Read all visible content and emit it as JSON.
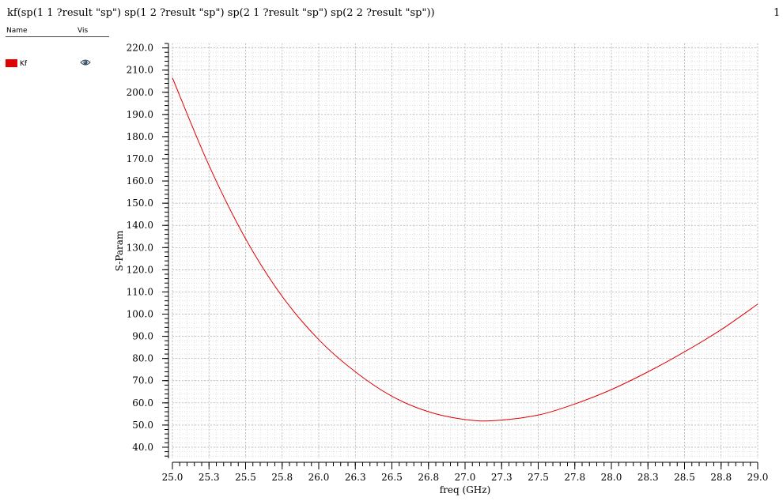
{
  "header": {
    "title": "kf(sp(1 1 ?result \"sp\") sp(1 2 ?result \"sp\") sp(2 1 ?result \"sp\") sp(2 2 ?result \"sp\"))",
    "page_number": "1"
  },
  "legend": {
    "col_name": "Name",
    "col_vis": "Vis",
    "items": [
      {
        "label": "Kf",
        "color": "#e00000",
        "visible_icon": "eye-icon"
      }
    ]
  },
  "colors": {
    "trace": "#e00000",
    "grid": "#cfcfcf",
    "axis": "#000000"
  },
  "chart_data": {
    "type": "line",
    "title": "",
    "xlabel": "freq (GHz)",
    "ylabel": "S-Param",
    "xlim": [
      25.0,
      29.0
    ],
    "ylim": [
      35.0,
      222.0
    ],
    "x_ticks": [
      "25.0",
      "25.3",
      "25.5",
      "25.8",
      "26.0",
      "26.3",
      "26.5",
      "26.8",
      "27.0",
      "27.3",
      "27.5",
      "27.8",
      "28.0",
      "28.3",
      "28.5",
      "28.8",
      "29.0"
    ],
    "y_ticks": [
      "40.0",
      "50.0",
      "60.0",
      "70.0",
      "80.0",
      "90.0",
      "100.0",
      "110.0",
      "120.0",
      "130.0",
      "140.0",
      "150.0",
      "160.0",
      "170.0",
      "180.0",
      "190.0",
      "200.0",
      "210.0",
      "220.0"
    ],
    "grid": true,
    "series": [
      {
        "name": "Kf",
        "x": [
          25.0,
          25.25,
          25.5,
          25.75,
          26.0,
          26.25,
          26.5,
          26.75,
          27.0,
          27.2,
          27.5,
          27.75,
          28.0,
          28.25,
          28.5,
          28.75,
          29.0
        ],
        "y": [
          206.5,
          167.0,
          134.0,
          108.0,
          88.5,
          74.0,
          63.0,
          56.0,
          52.5,
          52.0,
          54.5,
          59.5,
          66.0,
          74.0,
          83.0,
          93.0,
          104.5
        ]
      }
    ]
  }
}
